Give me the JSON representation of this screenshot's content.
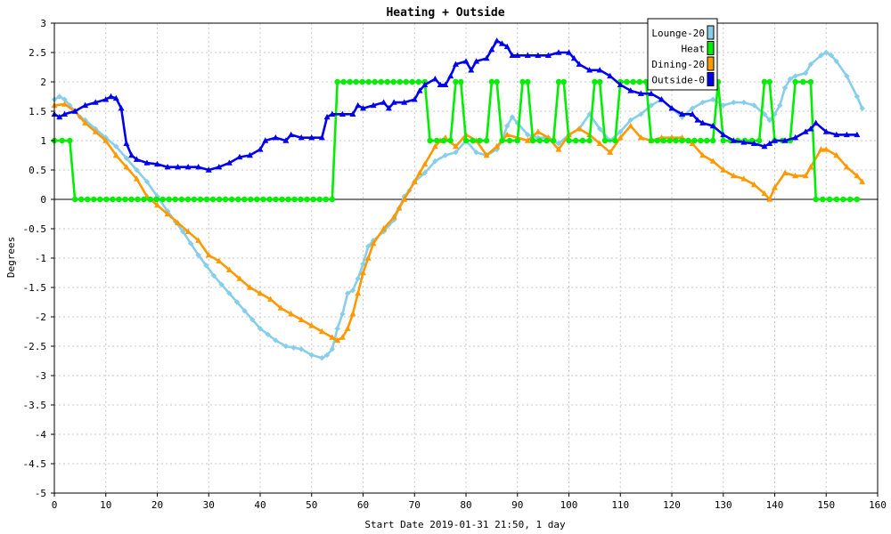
{
  "chart_data": {
    "type": "line",
    "title": "Heating + Outside",
    "xlabel": "Start Date 2019-01-31 21:50, 1 day",
    "ylabel": "Degrees",
    "xlim": [
      0,
      160
    ],
    "ylim": [
      -5,
      3
    ],
    "xticks": [
      "0",
      "10",
      "20",
      "30",
      "40",
      "50",
      "60",
      "70",
      "80",
      "90",
      "100",
      "110",
      "120",
      "130",
      "140",
      "150",
      "160"
    ],
    "yticks": [
      "-5",
      "-4.5",
      "-4",
      "-3.5",
      "-3",
      "-2.5",
      "-2",
      "-1.5",
      "-1",
      "-0.5",
      "0",
      "0.5",
      "1",
      "1.5",
      "2",
      "2.5",
      "3"
    ],
    "grid": true,
    "legend_position": "top-right",
    "series": [
      {
        "name": "Lounge-20",
        "color": "#87ceeb",
        "marker": "diamond",
        "points": [
          [
            0,
            1.7
          ],
          [
            1,
            1.75
          ],
          [
            2,
            1.7
          ],
          [
            3,
            1.6
          ],
          [
            4,
            1.5
          ],
          [
            5,
            1.4
          ],
          [
            6,
            1.35
          ],
          [
            8,
            1.2
          ],
          [
            10,
            1.05
          ],
          [
            12,
            0.9
          ],
          [
            14,
            0.7
          ],
          [
            16,
            0.5
          ],
          [
            18,
            0.3
          ],
          [
            20,
            0.05
          ],
          [
            22,
            -0.2
          ],
          [
            25,
            -0.55
          ],
          [
            28,
            -0.95
          ],
          [
            31,
            -1.3
          ],
          [
            34,
            -1.6
          ],
          [
            37,
            -1.9
          ],
          [
            40,
            -2.2
          ],
          [
            43,
            -2.4
          ],
          [
            45,
            -2.5
          ],
          [
            48,
            -2.55
          ],
          [
            50,
            -2.65
          ],
          [
            52,
            -2.7
          ],
          [
            53,
            -2.65
          ],
          [
            54,
            -2.55
          ],
          [
            55,
            -2.2
          ],
          [
            56,
            -1.95
          ],
          [
            57,
            -1.6
          ],
          [
            58,
            -1.55
          ],
          [
            59,
            -1.35
          ],
          [
            60,
            -1.1
          ],
          [
            61,
            -0.8
          ],
          [
            62,
            -0.7
          ],
          [
            64,
            -0.55
          ],
          [
            66,
            -0.35
          ],
          [
            67,
            -0.15
          ],
          [
            68,
            0.05
          ],
          [
            69,
            0.15
          ],
          [
            70,
            0.3
          ],
          [
            72,
            0.45
          ],
          [
            74,
            0.65
          ],
          [
            76,
            0.75
          ],
          [
            78,
            0.8
          ],
          [
            80,
            1.0
          ],
          [
            82,
            0.8
          ],
          [
            84,
            0.75
          ],
          [
            86,
            0.85
          ],
          [
            87,
            1.0
          ],
          [
            88,
            1.25
          ],
          [
            89,
            1.4
          ],
          [
            90,
            1.3
          ],
          [
            92,
            1.1
          ],
          [
            94,
            1.05
          ],
          [
            96,
            1.05
          ],
          [
            98,
            0.95
          ],
          [
            100,
            1.1
          ],
          [
            102,
            1.2
          ],
          [
            104,
            1.45
          ],
          [
            106,
            1.2
          ],
          [
            108,
            1.0
          ],
          [
            110,
            1.15
          ],
          [
            112,
            1.35
          ],
          [
            114,
            1.45
          ],
          [
            116,
            1.6
          ],
          [
            118,
            1.7
          ],
          [
            120,
            1.55
          ],
          [
            122,
            1.4
          ],
          [
            124,
            1.55
          ],
          [
            126,
            1.65
          ],
          [
            128,
            1.7
          ],
          [
            130,
            1.6
          ],
          [
            132,
            1.65
          ],
          [
            134,
            1.65
          ],
          [
            136,
            1.6
          ],
          [
            138,
            1.45
          ],
          [
            139,
            1.35
          ],
          [
            140,
            1.45
          ],
          [
            141,
            1.6
          ],
          [
            142,
            1.9
          ],
          [
            143,
            2.05
          ],
          [
            144,
            2.1
          ],
          [
            146,
            2.15
          ],
          [
            147,
            2.3
          ],
          [
            149,
            2.45
          ],
          [
            150,
            2.5
          ],
          [
            151,
            2.45
          ],
          [
            152,
            2.35
          ],
          [
            154,
            2.1
          ],
          [
            156,
            1.75
          ],
          [
            157,
            1.55
          ]
        ]
      },
      {
        "name": "Heat",
        "color": "#00ee00",
        "marker": "circle",
        "points": [
          [
            0,
            1
          ],
          [
            3,
            1
          ],
          [
            4,
            0
          ],
          [
            54,
            0
          ],
          [
            55,
            2
          ],
          [
            72,
            2
          ],
          [
            73,
            1
          ],
          [
            77,
            1
          ],
          [
            78,
            2
          ],
          [
            79,
            2
          ],
          [
            80,
            1
          ],
          [
            84,
            1
          ],
          [
            85,
            2
          ],
          [
            86,
            2
          ],
          [
            87,
            1
          ],
          [
            90,
            1
          ],
          [
            91,
            2
          ],
          [
            92,
            2
          ],
          [
            93,
            1
          ],
          [
            97,
            1
          ],
          [
            98,
            2
          ],
          [
            99,
            2
          ],
          [
            100,
            1
          ],
          [
            104,
            1
          ],
          [
            105,
            2
          ],
          [
            106,
            2
          ],
          [
            107,
            1
          ],
          [
            109,
            1
          ],
          [
            110,
            2
          ],
          [
            115,
            2
          ],
          [
            116,
            1
          ],
          [
            128,
            1
          ],
          [
            129,
            2
          ],
          [
            130,
            1
          ],
          [
            137,
            1
          ],
          [
            138,
            2
          ],
          [
            139,
            2
          ],
          [
            140,
            1
          ],
          [
            143,
            1
          ],
          [
            144,
            2
          ],
          [
            147,
            2
          ],
          [
            148,
            0
          ],
          [
            156,
            0
          ]
        ]
      },
      {
        "name": "Dining-20",
        "color": "#ff9900",
        "marker": "triangle",
        "points": [
          [
            0,
            1.6
          ],
          [
            2,
            1.62
          ],
          [
            4,
            1.5
          ],
          [
            6,
            1.3
          ],
          [
            8,
            1.15
          ],
          [
            10,
            1.0
          ],
          [
            12,
            0.75
          ],
          [
            14,
            0.55
          ],
          [
            16,
            0.35
          ],
          [
            18,
            0.05
          ],
          [
            20,
            -0.1
          ],
          [
            22,
            -0.25
          ],
          [
            24,
            -0.4
          ],
          [
            26,
            -0.55
          ],
          [
            28,
            -0.7
          ],
          [
            30,
            -0.95
          ],
          [
            32,
            -1.05
          ],
          [
            34,
            -1.2
          ],
          [
            36,
            -1.35
          ],
          [
            38,
            -1.5
          ],
          [
            40,
            -1.6
          ],
          [
            42,
            -1.7
          ],
          [
            44,
            -1.85
          ],
          [
            46,
            -1.95
          ],
          [
            48,
            -2.05
          ],
          [
            50,
            -2.15
          ],
          [
            52,
            -2.25
          ],
          [
            54,
            -2.35
          ],
          [
            55,
            -2.4
          ],
          [
            56,
            -2.35
          ],
          [
            57,
            -2.2
          ],
          [
            58,
            -1.95
          ],
          [
            59,
            -1.6
          ],
          [
            60,
            -1.25
          ],
          [
            61,
            -1.0
          ],
          [
            62,
            -0.75
          ],
          [
            64,
            -0.5
          ],
          [
            66,
            -0.3
          ],
          [
            67,
            -0.15
          ],
          [
            68,
            0.0
          ],
          [
            70,
            0.3
          ],
          [
            71,
            0.45
          ],
          [
            72,
            0.6
          ],
          [
            74,
            0.9
          ],
          [
            75,
            1.0
          ],
          [
            76,
            1.05
          ],
          [
            78,
            0.9
          ],
          [
            80,
            1.1
          ],
          [
            82,
            1.0
          ],
          [
            84,
            0.75
          ],
          [
            86,
            0.9
          ],
          [
            88,
            1.1
          ],
          [
            90,
            1.05
          ],
          [
            92,
            1.0
          ],
          [
            94,
            1.15
          ],
          [
            96,
            1.05
          ],
          [
            98,
            0.85
          ],
          [
            100,
            1.1
          ],
          [
            102,
            1.2
          ],
          [
            104,
            1.1
          ],
          [
            106,
            0.95
          ],
          [
            108,
            0.8
          ],
          [
            110,
            1.05
          ],
          [
            112,
            1.25
          ],
          [
            114,
            1.05
          ],
          [
            116,
            1.0
          ],
          [
            118,
            1.05
          ],
          [
            120,
            1.05
          ],
          [
            122,
            1.05
          ],
          [
            124,
            0.95
          ],
          [
            126,
            0.75
          ],
          [
            128,
            0.65
          ],
          [
            130,
            0.5
          ],
          [
            132,
            0.4
          ],
          [
            134,
            0.35
          ],
          [
            136,
            0.25
          ],
          [
            138,
            0.1
          ],
          [
            139,
            0.0
          ],
          [
            140,
            0.2
          ],
          [
            142,
            0.45
          ],
          [
            144,
            0.4
          ],
          [
            146,
            0.4
          ],
          [
            147,
            0.55
          ],
          [
            149,
            0.85
          ],
          [
            150,
            0.85
          ],
          [
            152,
            0.75
          ],
          [
            154,
            0.55
          ],
          [
            156,
            0.4
          ],
          [
            157,
            0.3
          ]
        ]
      },
      {
        "name": "Outside-0",
        "color": "#0000ee",
        "marker": "triangle",
        "points": [
          [
            0,
            1.45
          ],
          [
            1,
            1.4
          ],
          [
            2,
            1.45
          ],
          [
            4,
            1.5
          ],
          [
            6,
            1.6
          ],
          [
            8,
            1.65
          ],
          [
            10,
            1.7
          ],
          [
            11,
            1.75
          ],
          [
            12,
            1.72
          ],
          [
            13,
            1.55
          ],
          [
            14,
            0.95
          ],
          [
            15,
            0.75
          ],
          [
            16,
            0.68
          ],
          [
            18,
            0.62
          ],
          [
            20,
            0.6
          ],
          [
            22,
            0.55
          ],
          [
            24,
            0.55
          ],
          [
            26,
            0.55
          ],
          [
            28,
            0.55
          ],
          [
            30,
            0.5
          ],
          [
            32,
            0.55
          ],
          [
            34,
            0.62
          ],
          [
            36,
            0.72
          ],
          [
            38,
            0.75
          ],
          [
            40,
            0.85
          ],
          [
            41,
            1.0
          ],
          [
            43,
            1.05
          ],
          [
            45,
            1.0
          ],
          [
            46,
            1.1
          ],
          [
            48,
            1.05
          ],
          [
            50,
            1.05
          ],
          [
            52,
            1.05
          ],
          [
            53,
            1.4
          ],
          [
            54,
            1.45
          ],
          [
            56,
            1.45
          ],
          [
            58,
            1.45
          ],
          [
            59,
            1.6
          ],
          [
            60,
            1.55
          ],
          [
            62,
            1.6
          ],
          [
            64,
            1.65
          ],
          [
            65,
            1.55
          ],
          [
            66,
            1.65
          ],
          [
            68,
            1.65
          ],
          [
            70,
            1.7
          ],
          [
            71,
            1.85
          ],
          [
            72,
            1.95
          ],
          [
            74,
            2.05
          ],
          [
            75,
            1.95
          ],
          [
            76,
            1.95
          ],
          [
            77,
            2.1
          ],
          [
            78,
            2.3
          ],
          [
            80,
            2.35
          ],
          [
            81,
            2.2
          ],
          [
            82,
            2.35
          ],
          [
            84,
            2.4
          ],
          [
            85,
            2.55
          ],
          [
            86,
            2.7
          ],
          [
            87,
            2.65
          ],
          [
            88,
            2.6
          ],
          [
            89,
            2.45
          ],
          [
            90,
            2.45
          ],
          [
            92,
            2.45
          ],
          [
            94,
            2.45
          ],
          [
            96,
            2.45
          ],
          [
            98,
            2.5
          ],
          [
            100,
            2.5
          ],
          [
            101,
            2.4
          ],
          [
            102,
            2.3
          ],
          [
            104,
            2.2
          ],
          [
            106,
            2.2
          ],
          [
            108,
            2.1
          ],
          [
            110,
            1.95
          ],
          [
            112,
            1.85
          ],
          [
            114,
            1.8
          ],
          [
            116,
            1.8
          ],
          [
            118,
            1.7
          ],
          [
            120,
            1.55
          ],
          [
            122,
            1.45
          ],
          [
            124,
            1.45
          ],
          [
            125,
            1.35
          ],
          [
            126,
            1.3
          ],
          [
            128,
            1.25
          ],
          [
            130,
            1.1
          ],
          [
            132,
            1.0
          ],
          [
            134,
            0.97
          ],
          [
            136,
            0.95
          ],
          [
            138,
            0.9
          ],
          [
            139,
            0.95
          ],
          [
            140,
            1.0
          ],
          [
            142,
            1.0
          ],
          [
            144,
            1.05
          ],
          [
            146,
            1.15
          ],
          [
            147,
            1.2
          ],
          [
            148,
            1.3
          ],
          [
            150,
            1.15
          ],
          [
            152,
            1.1
          ],
          [
            154,
            1.1
          ],
          [
            156,
            1.1
          ]
        ]
      }
    ]
  }
}
